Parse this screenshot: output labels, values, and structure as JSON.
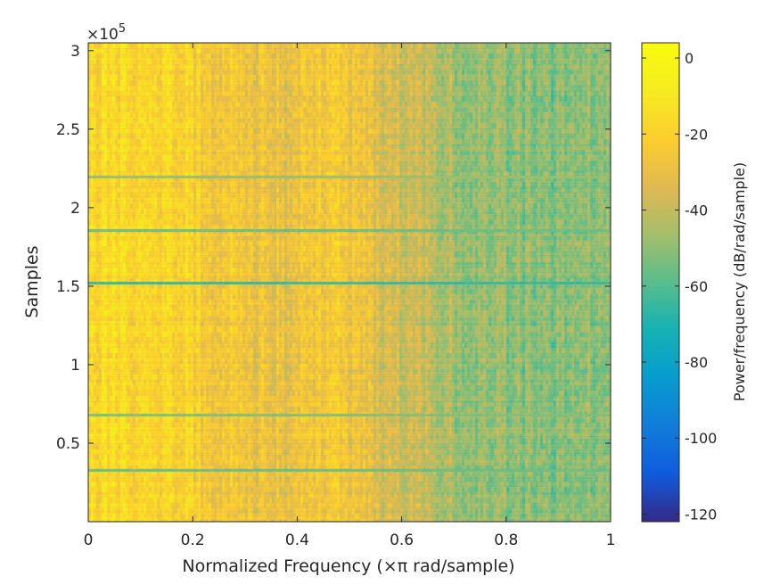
{
  "chart_data": {
    "type": "heatmap",
    "xlabel": "Normalized Frequency  (×π rad/sample)",
    "ylabel": "Samples",
    "y_exponent_label": "×10",
    "y_exponent_power": "5",
    "colorbar_label": "Power/frequency (dB/rad/sample)",
    "xlim": [
      0,
      1
    ],
    "ylim": [
      0,
      3.05
    ],
    "x_ticks": [
      0,
      0.2,
      0.4,
      0.6,
      0.8,
      1
    ],
    "x_tick_labels": [
      "0",
      "0.2",
      "0.4",
      "0.6",
      "0.8",
      "1"
    ],
    "y_ticks": [
      0.5,
      1,
      1.5,
      2,
      2.5,
      3
    ],
    "y_tick_labels": [
      "0.5",
      "1",
      "1.5",
      "2",
      "2.5",
      "3"
    ],
    "clim": [
      -122,
      4
    ],
    "colorbar_ticks": [
      0,
      -20,
      -40,
      -60,
      -80,
      -100,
      -120
    ],
    "colorbar_tick_labels": [
      "0",
      "-20",
      "-40",
      "-60",
      "-80",
      "-100",
      "-120"
    ],
    "colormap": "parula",
    "grid": false,
    "colors": {
      "axis": "#262626",
      "background": "#ffffff"
    },
    "profile_freq": [
      0,
      0.05,
      0.1,
      0.15,
      0.2,
      0.25,
      0.3,
      0.35,
      0.4,
      0.45,
      0.5,
      0.55,
      0.6,
      0.65,
      0.7,
      0.75,
      0.8,
      0.85,
      0.9,
      0.95,
      1.0
    ],
    "profile_power_db": [
      -18,
      -16,
      -17,
      -18,
      -22,
      -24,
      -26,
      -30,
      -30,
      -25,
      -27,
      -33,
      -38,
      -42,
      -46,
      -48,
      -50,
      -52,
      -52,
      -50,
      -52
    ],
    "dark_rows_samples_e5": [
      0.33,
      0.68,
      1.52,
      1.86,
      2.2
    ],
    "dark_rows_power_db": [
      -55,
      -52,
      -65,
      -55,
      -48
    ]
  }
}
